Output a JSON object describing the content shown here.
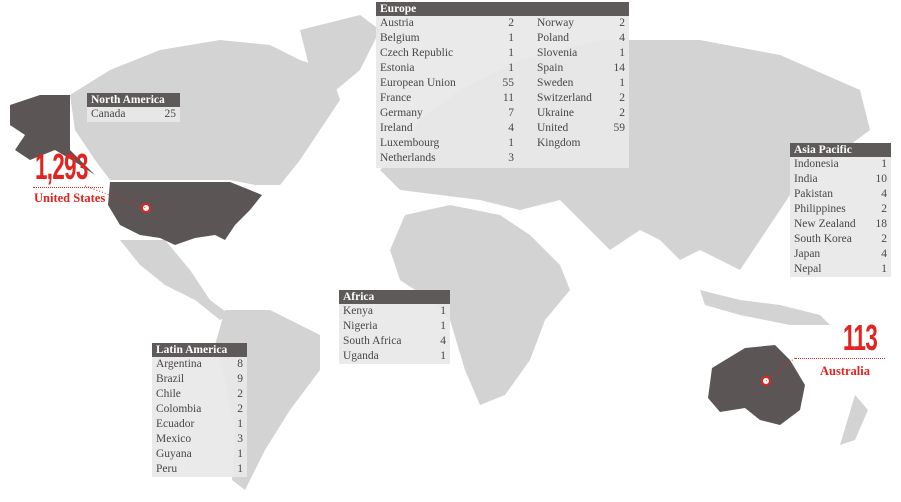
{
  "colors": {
    "land": "#d3d3d3",
    "highlight": "#5b5555",
    "header": "#5f5a5a",
    "accent": "#e3231f"
  },
  "highlights": {
    "us": {
      "value": "1,293",
      "label": "United States"
    },
    "australia": {
      "value": "113",
      "label": "Australia"
    }
  },
  "regions": {
    "north_america": {
      "title": "North America",
      "items": [
        {
          "name": "Canada",
          "count": "25"
        }
      ]
    },
    "europe": {
      "title": "Europe",
      "left": [
        {
          "name": "Austria",
          "count": "2"
        },
        {
          "name": "Belgium",
          "count": "1"
        },
        {
          "name": "Czech Republic",
          "count": "1"
        },
        {
          "name": "Estonia",
          "count": "1"
        },
        {
          "name": "European Union",
          "count": "55"
        },
        {
          "name": "France",
          "count": "11"
        },
        {
          "name": "Germany",
          "count": "7"
        },
        {
          "name": "Ireland",
          "count": "4"
        },
        {
          "name": "Luxembourg",
          "count": "1"
        },
        {
          "name": "Netherlands",
          "count": "3"
        }
      ],
      "right": [
        {
          "name": "Norway",
          "count": "2"
        },
        {
          "name": "Poland",
          "count": "4"
        },
        {
          "name": "Slovenia",
          "count": "1"
        },
        {
          "name": "Spain",
          "count": "14"
        },
        {
          "name": "Sweden",
          "count": "1"
        },
        {
          "name": "Switzerland",
          "count": "2"
        },
        {
          "name": "Ukraine",
          "count": "2"
        },
        {
          "name": "United Kingdom",
          "count": "59"
        }
      ]
    },
    "asia_pacific": {
      "title": "Asia Pacific",
      "items": [
        {
          "name": "Indonesia",
          "count": "1"
        },
        {
          "name": "India",
          "count": "10"
        },
        {
          "name": "Pakistan",
          "count": "4"
        },
        {
          "name": "Philippines",
          "count": "2"
        },
        {
          "name": "New Zealand",
          "count": "18"
        },
        {
          "name": "South Korea",
          "count": "2"
        },
        {
          "name": "Japan",
          "count": "4"
        },
        {
          "name": "Nepal",
          "count": "1"
        }
      ]
    },
    "africa": {
      "title": "Africa",
      "items": [
        {
          "name": "Kenya",
          "count": "1"
        },
        {
          "name": "Nigeria",
          "count": "1"
        },
        {
          "name": "South Africa",
          "count": "4"
        },
        {
          "name": "Uganda",
          "count": "1"
        }
      ]
    },
    "latin_america": {
      "title": "Latin America",
      "items": [
        {
          "name": "Argentina",
          "count": "8"
        },
        {
          "name": "Brazil",
          "count": "9"
        },
        {
          "name": "Chile",
          "count": "2"
        },
        {
          "name": "Colombia",
          "count": "2"
        },
        {
          "name": "Ecuador",
          "count": "1"
        },
        {
          "name": "Mexico",
          "count": "3"
        },
        {
          "name": "Guyana",
          "count": "1"
        },
        {
          "name": "Peru",
          "count": "1"
        }
      ]
    }
  }
}
